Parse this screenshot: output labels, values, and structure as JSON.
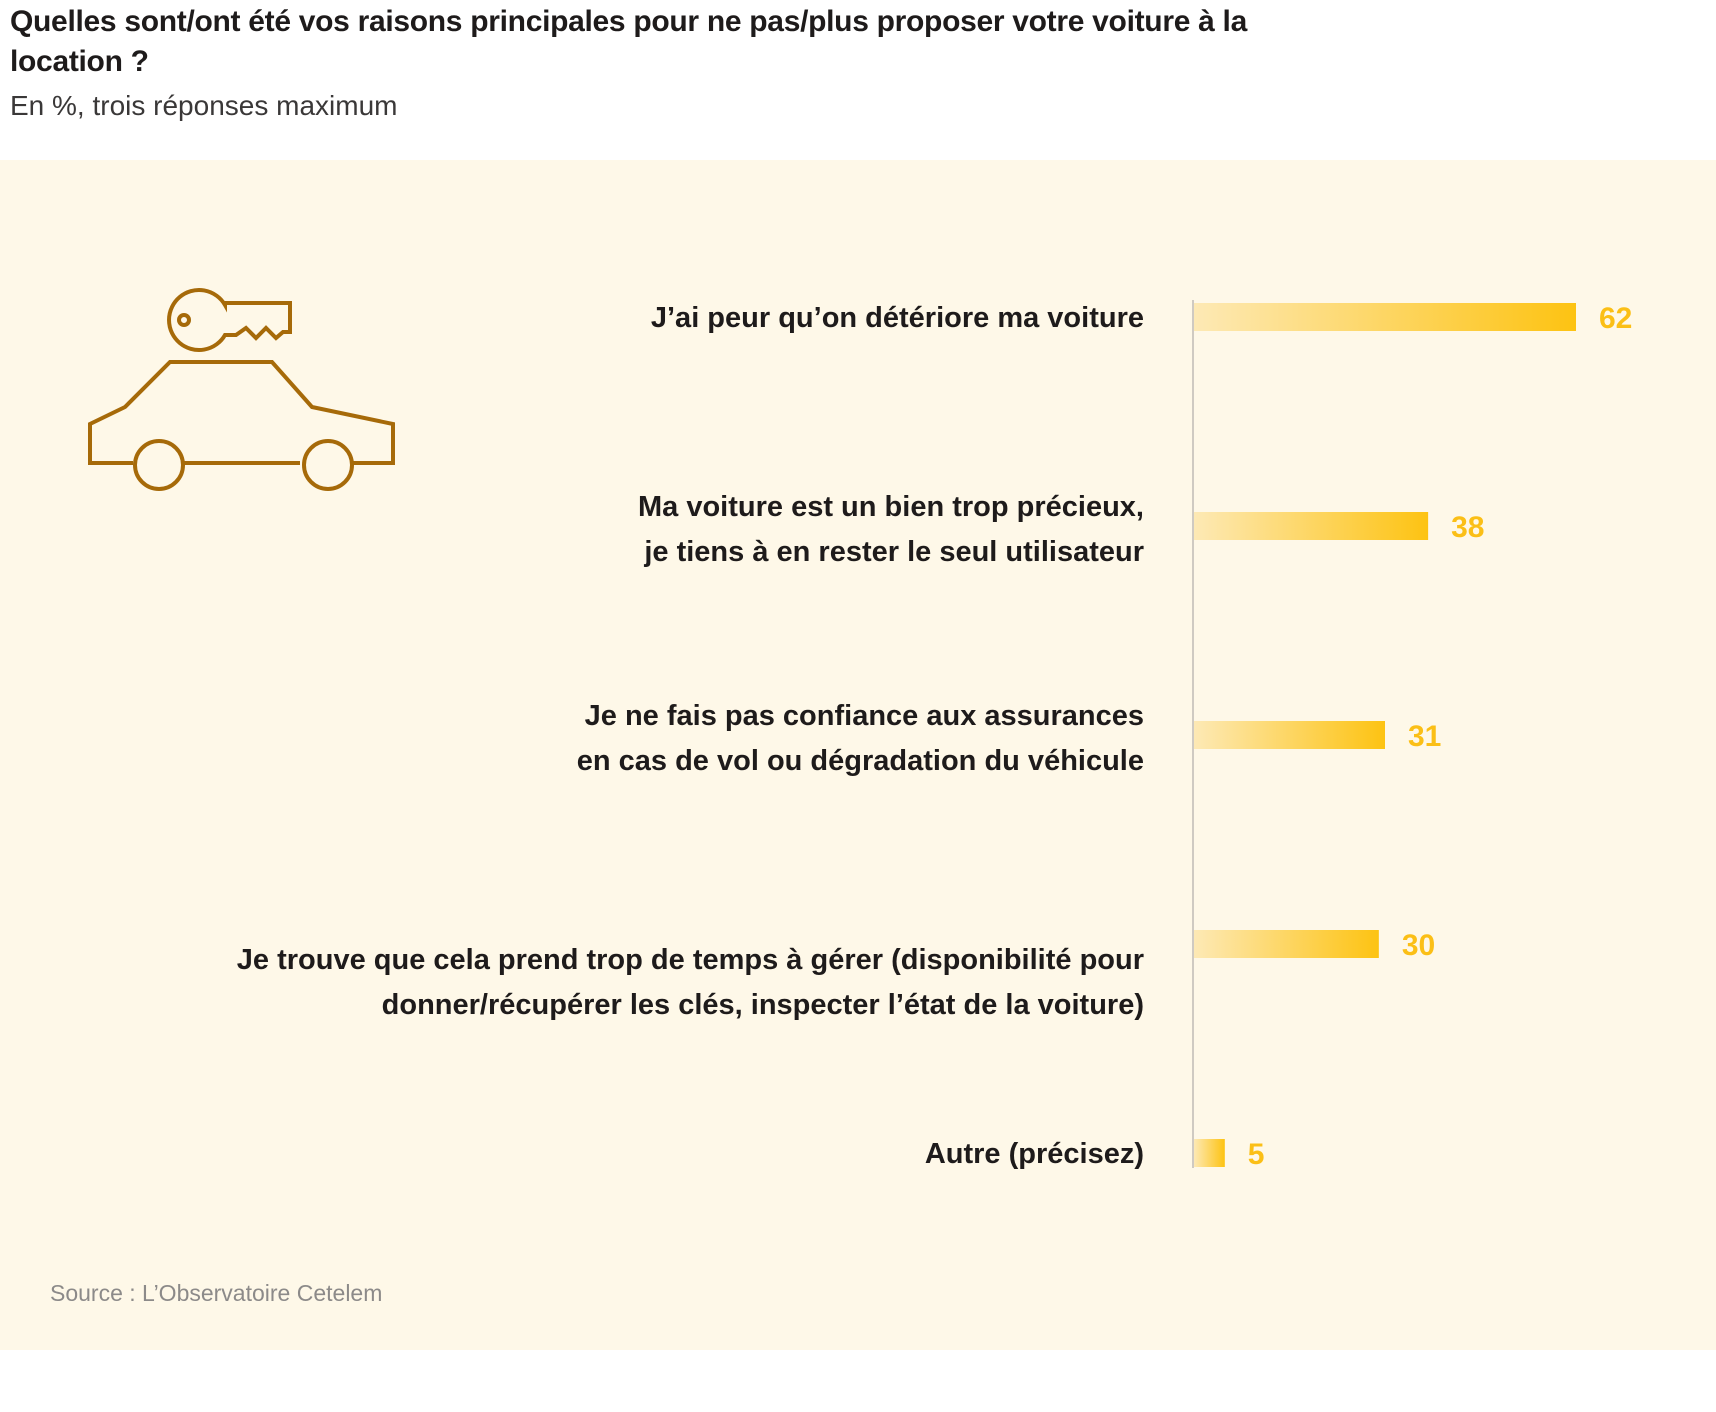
{
  "header": {
    "title": "Quelles sont/ont été vos raisons principales pour ne pas/plus proposer votre voiture à la location ?",
    "subtitle": "En %, trois réponses maximum"
  },
  "illustration": {
    "icon": "car-with-key-icon",
    "color": "#a66a09"
  },
  "source": "Source : L’Observatoire Cetelem",
  "colors": {
    "bar_start": "#fde9b5",
    "bar_end": "#fdc312",
    "value_text": "#fbbf16",
    "axis": "#cfcac2",
    "panel": "#fef8e8"
  },
  "chart_data": {
    "type": "bar",
    "orientation": "horizontal",
    "title": "Quelles sont/ont été vos raisons principales pour ne pas/plus proposer votre voiture à la location ?",
    "subtitle": "En %, trois réponses maximum",
    "xlabel": "",
    "ylabel": "",
    "xlim": [
      0,
      62
    ],
    "grid": false,
    "legend": "none",
    "unit": "%",
    "categories": [
      [
        "J’ai peur qu’on détériore ma voiture"
      ],
      [
        "Ma voiture est un bien trop précieux,",
        "je tiens à en rester le seul utilisateur"
      ],
      [
        "Je ne fais pas confiance aux assurances",
        "en cas de vol ou dégradation du véhicule"
      ],
      [
        "Je trouve que cela prend trop de temps à gérer (disponibilité pour",
        "donner/récupérer les clés, inspecter l’état de la voiture)"
      ],
      [
        "Autre (précisez)"
      ]
    ],
    "values": [
      62,
      38,
      31,
      30,
      5
    ],
    "data_labels": [
      "62",
      "38",
      "31",
      "30",
      "5"
    ],
    "source": "Source : L’Observatoire Cetelem"
  }
}
